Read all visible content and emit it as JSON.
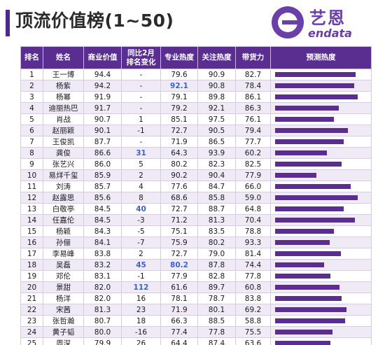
{
  "title": "顶流价值榜(1~50)",
  "logo": {
    "cn": "艺恩",
    "en": "endata",
    "icon": "endata-logo-icon"
  },
  "colors": {
    "accent": "#5a2d91",
    "highlight": "#3b63c4",
    "bar": "#5b2c95"
  },
  "columns": [
    "排名",
    "姓名",
    "商业价值",
    "同比2月\n排名变化",
    "专业热度",
    "关注热度",
    "带货力",
    "预测热度"
  ],
  "rows": [
    {
      "rank": "1",
      "name": "王一博",
      "value": "94.4",
      "change": "-",
      "pro": "79.6",
      "attention": "90.9",
      "sales": "82.7",
      "forecast": 0.96
    },
    {
      "rank": "2",
      "name": "杨紫",
      "value": "94.2",
      "change": "-",
      "pro": "92.1",
      "attention": "90.8",
      "sales": "78.4",
      "forecast": 0.94
    },
    {
      "rank": "3",
      "name": "杨幂",
      "value": "91.9",
      "change": "-",
      "pro": "79.1",
      "attention": "89.8",
      "sales": "86.1",
      "forecast": 0.98
    },
    {
      "rank": "4",
      "name": "迪丽热巴",
      "value": "91.7",
      "change": "-",
      "pro": "79.2",
      "attention": "92.1",
      "sales": "86.3",
      "forecast": 0.76
    },
    {
      "rank": "5",
      "name": "肖战",
      "value": "90.7",
      "change": "1",
      "pro": "85.1",
      "attention": "97.5",
      "sales": "76.1",
      "forecast": 0.7
    },
    {
      "rank": "6",
      "name": "赵丽颖",
      "value": "90.1",
      "change": "-1",
      "pro": "72.7",
      "attention": "90.5",
      "sales": "79.4",
      "forecast": 0.87
    },
    {
      "rank": "7",
      "name": "王俊凯",
      "value": "87.7",
      "change": "-",
      "pro": "71.9",
      "attention": "86.5",
      "sales": "77.7",
      "forecast": 0.82
    },
    {
      "rank": "8",
      "name": "龚俊",
      "value": "86.6",
      "change": "31",
      "pro": "64.3",
      "attention": "93.9",
      "sales": "60.2",
      "forecast": 0.62
    },
    {
      "rank": "9",
      "name": "张艺兴",
      "value": "86.0",
      "change": "5",
      "pro": "80.2",
      "attention": "82.3",
      "sales": "82.5",
      "forecast": 0.79
    },
    {
      "rank": "10",
      "name": "易烊千玺",
      "value": "85.9",
      "change": "2",
      "pro": "90.2",
      "attention": "90.4",
      "sales": "77.9",
      "forecast": 0.49
    },
    {
      "rank": "11",
      "name": "刘涛",
      "value": "85.7",
      "change": "4",
      "pro": "77.6",
      "attention": "84.7",
      "sales": "66.0",
      "forecast": 0.9
    },
    {
      "rank": "12",
      "name": "赵露思",
      "value": "85.6",
      "change": "8",
      "pro": "68.6",
      "attention": "85.8",
      "sales": "59.0",
      "forecast": 0.98
    },
    {
      "rank": "13",
      "name": "白敬亭",
      "value": "84.5",
      "change": "40",
      "pro": "72.7",
      "attention": "88.7",
      "sales": "64.8",
      "forecast": 0.82
    },
    {
      "rank": "14",
      "name": "任嘉伦",
      "value": "84.5",
      "change": "-3",
      "pro": "71.2",
      "attention": "81.3",
      "sales": "70.4",
      "forecast": 0.95
    },
    {
      "rank": "15",
      "name": "杨颖",
      "value": "84.3",
      "change": "-5",
      "pro": "75.1",
      "attention": "83.5",
      "sales": "78.8",
      "forecast": 0.7
    },
    {
      "rank": "16",
      "name": "孙俪",
      "value": "84.1",
      "change": "-7",
      "pro": "75.9",
      "attention": "80.2",
      "sales": "93.3",
      "forecast": 0.65
    },
    {
      "rank": "17",
      "name": "李易峰",
      "value": "83.8",
      "change": "2",
      "pro": "72.7",
      "attention": "79.0",
      "sales": "81.4",
      "forecast": 0.78
    },
    {
      "rank": "18",
      "name": "吴磊",
      "value": "83.2",
      "change": "45",
      "pro": "80.2",
      "attention": "87.8",
      "sales": "74.4",
      "forecast": 0.58
    },
    {
      "rank": "19",
      "name": "邓伦",
      "value": "83.1",
      "change": "-1",
      "pro": "77.9",
      "attention": "82.8",
      "sales": "77.8",
      "forecast": 0.66
    },
    {
      "rank": "20",
      "name": "景甜",
      "value": "82.0",
      "change": "112",
      "pro": "61.6",
      "attention": "89.7",
      "sales": "60.8",
      "forecast": 0.77
    },
    {
      "rank": "21",
      "name": "杨洋",
      "value": "82.0",
      "change": "16",
      "pro": "78.1",
      "attention": "78.7",
      "sales": "83.8",
      "forecast": 0.79
    },
    {
      "rank": "22",
      "name": "宋茜",
      "value": "81.3",
      "change": "23",
      "pro": "71.9",
      "attention": "80.1",
      "sales": "69.2",
      "forecast": 0.85
    },
    {
      "rank": "23",
      "name": "张哲瀚",
      "value": "80.7",
      "change": "18",
      "pro": "66.3",
      "attention": "88.5",
      "sales": "58.8",
      "forecast": 0.83
    },
    {
      "rank": "24",
      "name": "黄子韬",
      "value": "80.0",
      "change": "-16",
      "pro": "77.4",
      "attention": "77.8",
      "sales": "75.5",
      "forecast": 0.68
    },
    {
      "rank": "25",
      "name": "周深",
      "value": "79.9",
      "change": "26",
      "pro": "64.4",
      "attention": "87.4",
      "sales": "63.6",
      "forecast": 0.66
    }
  ],
  "highlights": [
    {
      "row": 1,
      "field": "pro"
    },
    {
      "row": 7,
      "field": "change"
    },
    {
      "row": 12,
      "field": "change"
    },
    {
      "row": 17,
      "field": "change"
    },
    {
      "row": 17,
      "field": "pro"
    },
    {
      "row": 19,
      "field": "change"
    }
  ]
}
